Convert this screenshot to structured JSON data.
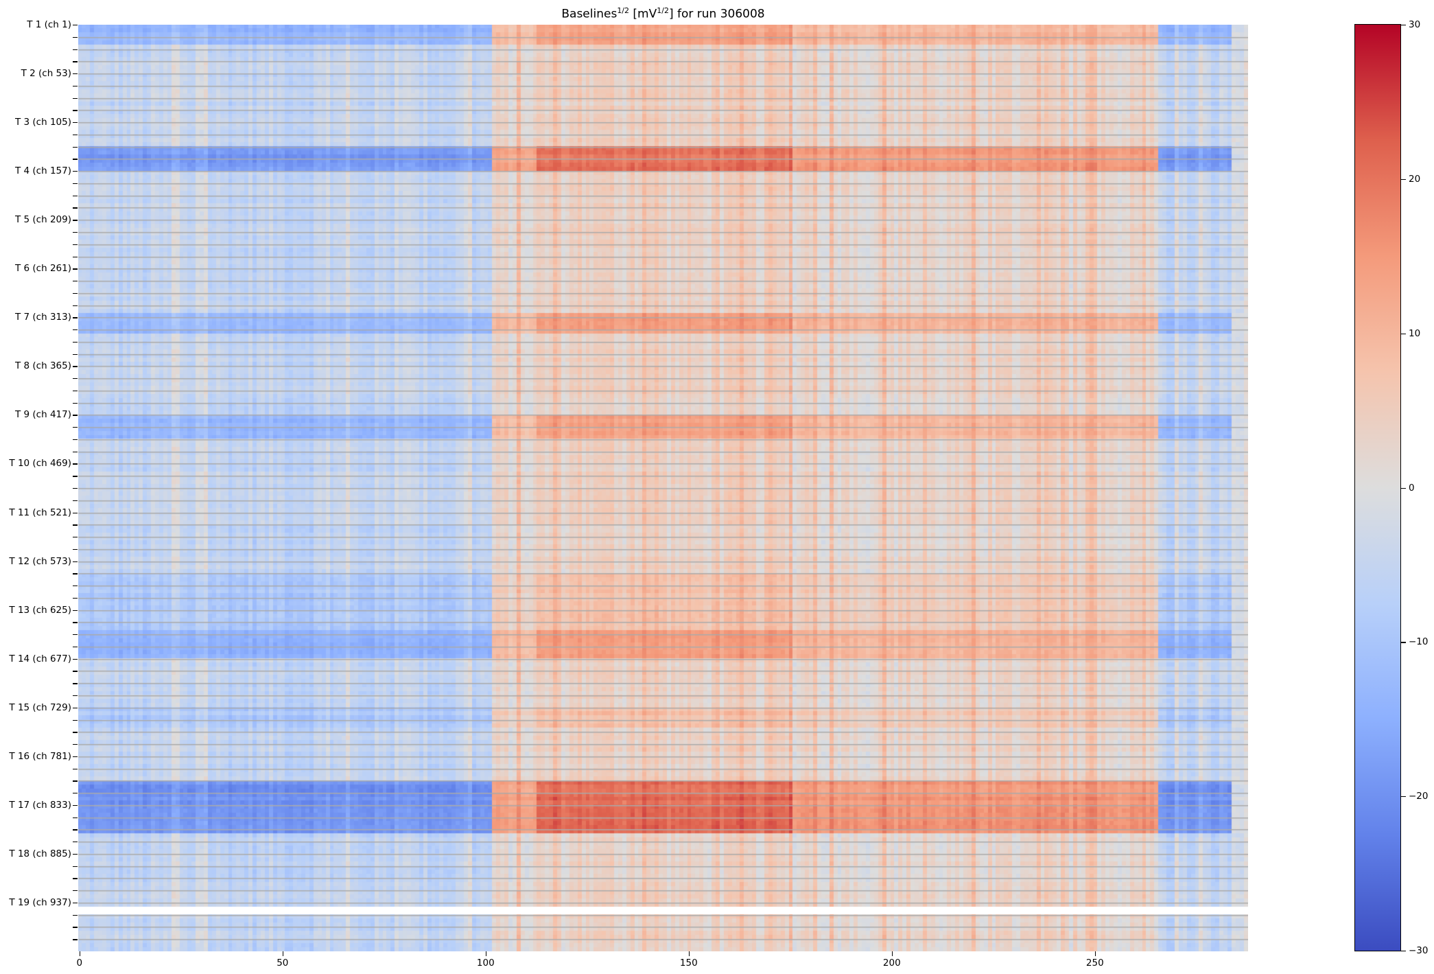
{
  "chart_data": {
    "type": "heatmap",
    "title": "Baselines",
    "title_sup1": "1/2",
    "title_mid": " [mV",
    "title_sup2": "1/2",
    "title_end": "] for run 306008",
    "xlabel": "",
    "ylabel": "",
    "n_columns": 288,
    "n_channels": 988,
    "channels_per_row": 4.33,
    "rows": 228,
    "blank_rows": [
      217,
      218
    ],
    "x_ticks": [
      0,
      50,
      100,
      150,
      200,
      250
    ],
    "y_tick_labels": [
      "T 1 (ch 1)",
      "T 2 (ch 53)",
      "T 3 (ch 105)",
      "T 4 (ch 157)",
      "T 5 (ch 209)",
      "T 6 (ch 261)",
      "T 7 (ch 313)",
      "T 8 (ch 365)",
      "T 9 (ch 417)",
      "T 10 (ch 469)",
      "T 11 (ch 521)",
      "T 12 (ch 573)",
      "T 13 (ch 625)",
      "T 14 (ch 677)",
      "T 15 (ch 729)",
      "T 16 (ch 781)",
      "T 17 (ch 833)",
      "T 18 (ch 885)",
      "T 19 (ch 937)"
    ],
    "y_minor_ticks_per_label": 4,
    "column_regions": [
      {
        "from": 0,
        "to": 101,
        "sign": -1,
        "level": 1.0
      },
      {
        "from": 102,
        "to": 112,
        "sign": 1,
        "level": 0.8
      },
      {
        "from": 113,
        "to": 175,
        "sign": 1,
        "level": 1.2
      },
      {
        "from": 176,
        "to": 265,
        "sign": 1,
        "level": 0.9
      },
      {
        "from": 266,
        "to": 283,
        "sign": -1,
        "level": 1.0
      },
      {
        "from": 284,
        "to": 287,
        "sign": 0,
        "level": 0.3
      }
    ],
    "strong_row_bands": [
      {
        "from": 0,
        "to": 4,
        "strength": 0.9
      },
      {
        "from": 30,
        "to": 35,
        "strength": 1.5
      },
      {
        "from": 71,
        "to": 75,
        "strength": 0.9
      },
      {
        "from": 96,
        "to": 101,
        "strength": 0.9
      },
      {
        "from": 135,
        "to": 148,
        "strength": 0.4
      },
      {
        "from": 149,
        "to": 155,
        "strength": 1.0
      },
      {
        "from": 168,
        "to": 172,
        "strength": 0.4
      },
      {
        "from": 186,
        "to": 198,
        "strength": 1.6
      }
    ],
    "colorbar": {
      "colormap": "coolwarm",
      "vmin": -30,
      "vmax": 30,
      "ticks": [
        "30",
        "20",
        "10",
        "0",
        "−10",
        "−20",
        "−30"
      ],
      "tick_values": [
        30,
        20,
        10,
        0,
        -10,
        -20,
        -30
      ]
    },
    "grid_line_color": "#aaaaaa"
  }
}
